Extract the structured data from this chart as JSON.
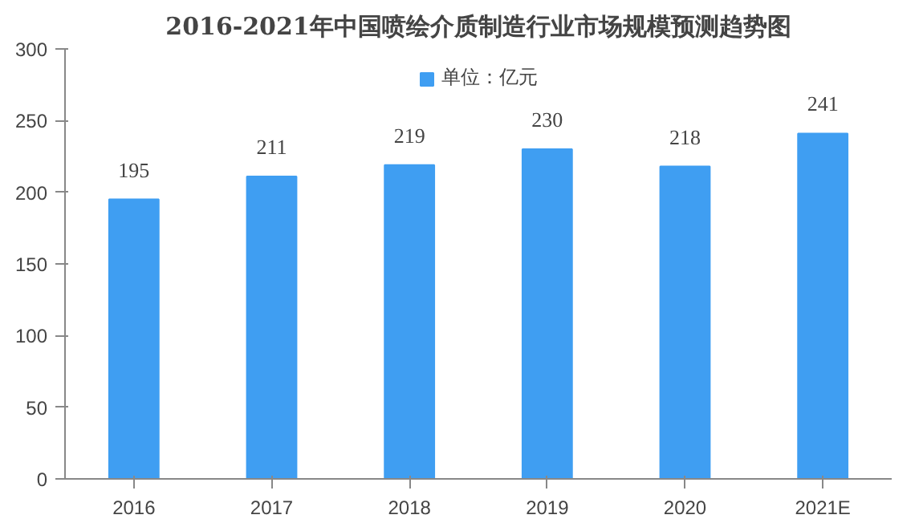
{
  "chart_data": {
    "type": "bar",
    "title": "2016-2021年中国喷绘介质制造行业市场规模预测趋势图",
    "categories": [
      "2016",
      "2017",
      "2018",
      "2019",
      "2020",
      "2021E"
    ],
    "series": [
      {
        "name": "单位：亿元",
        "color": "#3f9ef2",
        "values": [
          195,
          211,
          219,
          230,
          218,
          241
        ]
      }
    ],
    "ylim": [
      0,
      300
    ],
    "yticks": [
      0,
      50,
      100,
      150,
      200,
      250,
      300
    ],
    "grid": false,
    "legend": "top",
    "data_labels": true
  }
}
